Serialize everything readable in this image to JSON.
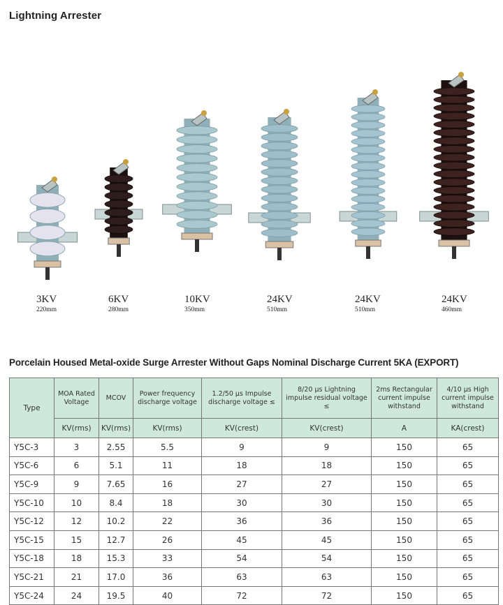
{
  "page_title": "Lightning Arrester",
  "products": [
    {
      "voltage": "3KV",
      "length": "220mm",
      "housing_color": "#e4e2ee"
    },
    {
      "voltage": "6KV",
      "length": "280mm",
      "housing_color": "#2e1d1c"
    },
    {
      "voltage": "10KV",
      "length": "350mm",
      "housing_color": "#a9c9cf"
    },
    {
      "voltage": "24KV",
      "length": "510mm",
      "housing_color": "#9ebfca"
    },
    {
      "voltage": "24KV",
      "length": "510mm",
      "housing_color": "#a3c4d0"
    },
    {
      "voltage": "24KV",
      "length": "460mm",
      "housing_color": "#3e2220"
    }
  ],
  "table": {
    "title": "Porcelain Housed Metal-oxide Surge Arrester Without Gaps Nominal Discharge Current 5KA (EXPORT)",
    "header_color": "#cfe8dc",
    "columns": [
      {
        "label": "Type",
        "unit": ""
      },
      {
        "label": "MOA Rated Voltage",
        "unit": "KV(rms)"
      },
      {
        "label": "MCOV",
        "unit": "KV(rms)"
      },
      {
        "label": "Power frequency discharge voltage",
        "unit": "KV(rms)"
      },
      {
        "label": "1.2/50 μs Impulse discharge voltage ≤",
        "unit": "KV(crest)"
      },
      {
        "label": "8/20 μs Lightning impulse residual voltage ≤",
        "unit": "KV(crest)"
      },
      {
        "label": "2ms Rectangular current impulse withstand",
        "unit": "A"
      },
      {
        "label": "4/10 μs High current impulse withstand",
        "unit": "KA(crest)"
      }
    ],
    "rows": [
      [
        "Y5C-3",
        "3",
        "2.55",
        "5.5",
        "9",
        "9",
        "150",
        "65"
      ],
      [
        "Y5C-6",
        "6",
        "5.1",
        "11",
        "18",
        "18",
        "150",
        "65"
      ],
      [
        "Y5C-9",
        "9",
        "7.65",
        "16",
        "27",
        "27",
        "150",
        "65"
      ],
      [
        "Y5C-10",
        "10",
        "8.4",
        "18",
        "30",
        "30",
        "150",
        "65"
      ],
      [
        "Y5C-12",
        "12",
        "10.2",
        "22",
        "36",
        "36",
        "150",
        "65"
      ],
      [
        "Y5C-15",
        "15",
        "12.7",
        "26",
        "45",
        "45",
        "150",
        "65"
      ],
      [
        "Y5C-18",
        "18",
        "15.3",
        "33",
        "54",
        "54",
        "150",
        "65"
      ],
      [
        "Y5C-21",
        "21",
        "17.0",
        "36",
        "63",
        "63",
        "150",
        "65"
      ],
      [
        "Y5C-24",
        "24",
        "19.5",
        "40",
        "72",
        "72",
        "150",
        "65"
      ]
    ]
  }
}
